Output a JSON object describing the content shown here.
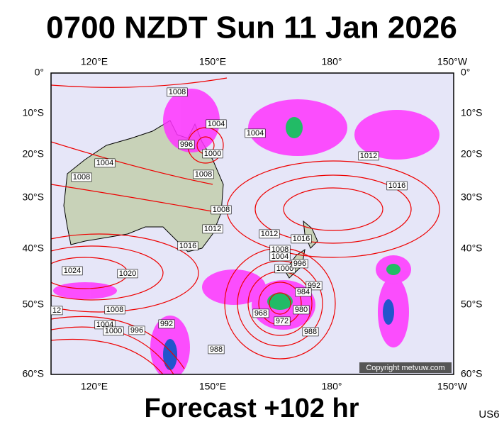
{
  "header": {
    "title": "0700 NZDT Sun 11 Jan 2026"
  },
  "axes": {
    "lon_top": [
      "120°E",
      "150°E",
      "180°",
      "150°W"
    ],
    "lon_bottom": [
      "120°E",
      "150°E",
      "180°",
      "150°W"
    ],
    "lat_left": [
      "0°",
      "10°S",
      "20°S",
      "30°S",
      "40°S",
      "50°S",
      "60°S"
    ],
    "lat_right": [
      "0°",
      "10°S",
      "20°S",
      "30°S",
      "40°S",
      "50°S",
      "60°S"
    ]
  },
  "isobar_labels": [
    1008,
    1004,
    1004,
    996,
    1000,
    1008,
    1004,
    1008,
    1012,
    1016,
    1008,
    1012,
    1016,
    1012,
    1016,
    1008,
    1004,
    1000,
    996,
    1024,
    1020,
    992,
    984,
    980,
    968,
    972,
    988,
    1008,
    1004,
    1000,
    996,
    992,
    988,
    12
  ],
  "footer": {
    "forecast": "Forecast +102 hr",
    "code": "US6",
    "copyright": "Copyright metvuw.com"
  }
}
